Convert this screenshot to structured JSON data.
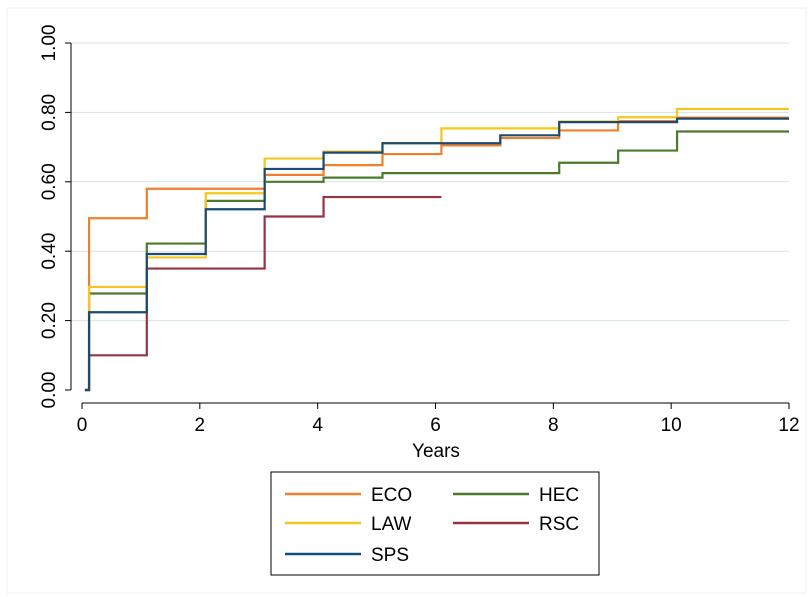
{
  "chart_data": {
    "type": "line",
    "step": true,
    "xlabel": "Years",
    "ylabel": "",
    "xlim": [
      0,
      12
    ],
    "ylim": [
      0,
      1
    ],
    "xticks": [
      0,
      2,
      4,
      6,
      8,
      10,
      12
    ],
    "yticks": [
      0,
      0.2,
      0.4,
      0.6,
      0.8,
      1.0
    ],
    "yticklabels": [
      "0.00",
      "0.20",
      "0.40",
      "0.60",
      "0.80",
      "1.00"
    ],
    "grid": true,
    "legend_position": "bottom",
    "legend_columns": 2,
    "series": [
      {
        "name": "ECO",
        "color": "#f07f2b",
        "x": [
          0.05,
          0.12,
          1.1,
          3.1,
          4.1,
          5.1,
          6.1,
          7.1,
          8.1,
          9.1,
          10.1,
          12
        ],
        "y": [
          0,
          0.495,
          0.58,
          0.62,
          0.648,
          0.68,
          0.705,
          0.726,
          0.748,
          0.775,
          0.785,
          0.785
        ]
      },
      {
        "name": "HEC",
        "color": "#4a7b2c",
        "x": [
          0.05,
          0.12,
          1.1,
          2.1,
          3.1,
          4.1,
          5.1,
          8.1,
          9.1,
          10.1,
          12
        ],
        "y": [
          0,
          0.278,
          0.422,
          0.545,
          0.6,
          0.612,
          0.625,
          0.655,
          0.69,
          0.745,
          0.745
        ]
      },
      {
        "name": "LAW",
        "color": "#f6c61c",
        "x": [
          0.05,
          0.12,
          1.1,
          2.1,
          3.1,
          4.1,
          5.1,
          6.1,
          7.1,
          8.1,
          9.1,
          10.1,
          12
        ],
        "y": [
          0,
          0.297,
          0.382,
          0.567,
          0.667,
          0.687,
          0.712,
          0.754,
          0.754,
          0.774,
          0.786,
          0.81,
          0.81
        ]
      },
      {
        "name": "RSC",
        "color": "#963442",
        "x": [
          0.05,
          0.12,
          1.1,
          3.1,
          4.1,
          6.1
        ],
        "y": [
          0,
          0.1,
          0.35,
          0.5,
          0.556,
          0.556
        ]
      },
      {
        "name": "SPS",
        "color": "#1a4b72",
        "x": [
          0.05,
          0.12,
          1.1,
          2.1,
          3.1,
          4.1,
          5.1,
          7.1,
          8.1,
          10.1,
          12
        ],
        "y": [
          0,
          0.224,
          0.392,
          0.521,
          0.637,
          0.684,
          0.711,
          0.734,
          0.772,
          0.782,
          0.782
        ]
      }
    ],
    "legend_order": [
      "ECO",
      "HEC",
      "LAW",
      "RSC",
      "SPS"
    ]
  }
}
